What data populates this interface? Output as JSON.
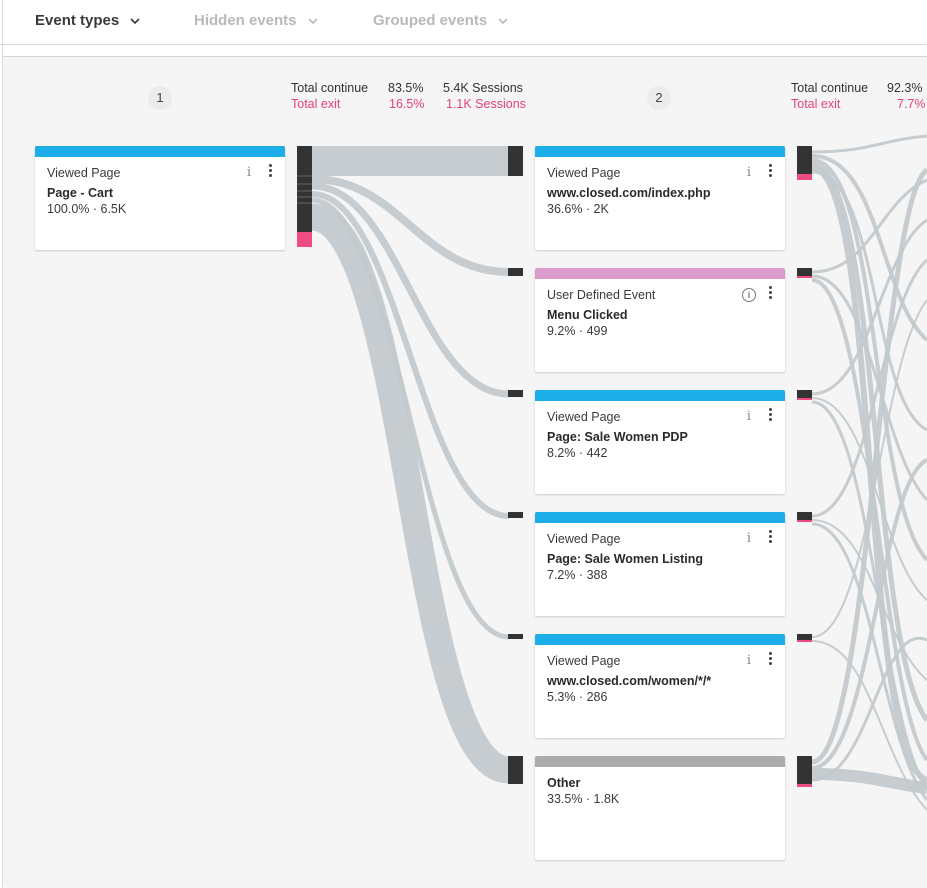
{
  "filters": {
    "event_types": "Event types",
    "hidden_events": "Hidden events",
    "grouped_events": "Grouped events"
  },
  "steps": [
    {
      "number": "1",
      "total_continue_label": "Total continue",
      "total_continue_pct": "83.5%",
      "total_continue_sessions": "5.4K Sessions",
      "total_exit_label": "Total exit",
      "total_exit_pct": "16.5%",
      "total_exit_sessions": "1.1K Sessions"
    },
    {
      "number": "2",
      "total_continue_label": "Total continue",
      "total_continue_pct": "92.3%",
      "total_exit_label": "Total exit",
      "total_exit_pct": "7.7%"
    }
  ],
  "colors": {
    "viewed_page": "#1daeea",
    "user_defined": "#d99ccd",
    "other": "#ababab",
    "exit": "#ef4c7f",
    "node": "#333333",
    "flow": "#c3c9cc"
  },
  "step1_cards": [
    {
      "type": "Viewed Page",
      "name": "Page - Cart",
      "stat": "100.0% · 6.5K",
      "color": "viewed_page",
      "icon": "info-icon"
    }
  ],
  "step2_cards": [
    {
      "type": "Viewed Page",
      "name": "www.closed.com/index.php",
      "stat": "36.6% · 2K",
      "color": "viewed_page",
      "icon": "info-icon"
    },
    {
      "type": "User Defined Event",
      "name": "Menu Clicked",
      "stat": "9.2% · 499",
      "color": "user_defined",
      "icon": "info-circle-icon"
    },
    {
      "type": "Viewed Page",
      "name": "Page: Sale Women PDP",
      "stat": "8.2% · 442",
      "color": "viewed_page",
      "icon": "info-icon"
    },
    {
      "type": "Viewed Page",
      "name": "Page: Sale Women Listing",
      "stat": "7.2% · 388",
      "color": "viewed_page",
      "icon": "info-icon"
    },
    {
      "type": "Viewed Page",
      "name": "www.closed.com/women/*/*",
      "stat": "5.3% · 286",
      "color": "viewed_page",
      "icon": "info-icon"
    },
    {
      "type": "",
      "name": "Other",
      "stat": "33.5% · 1.8K",
      "color": "other",
      "icon": ""
    }
  ]
}
